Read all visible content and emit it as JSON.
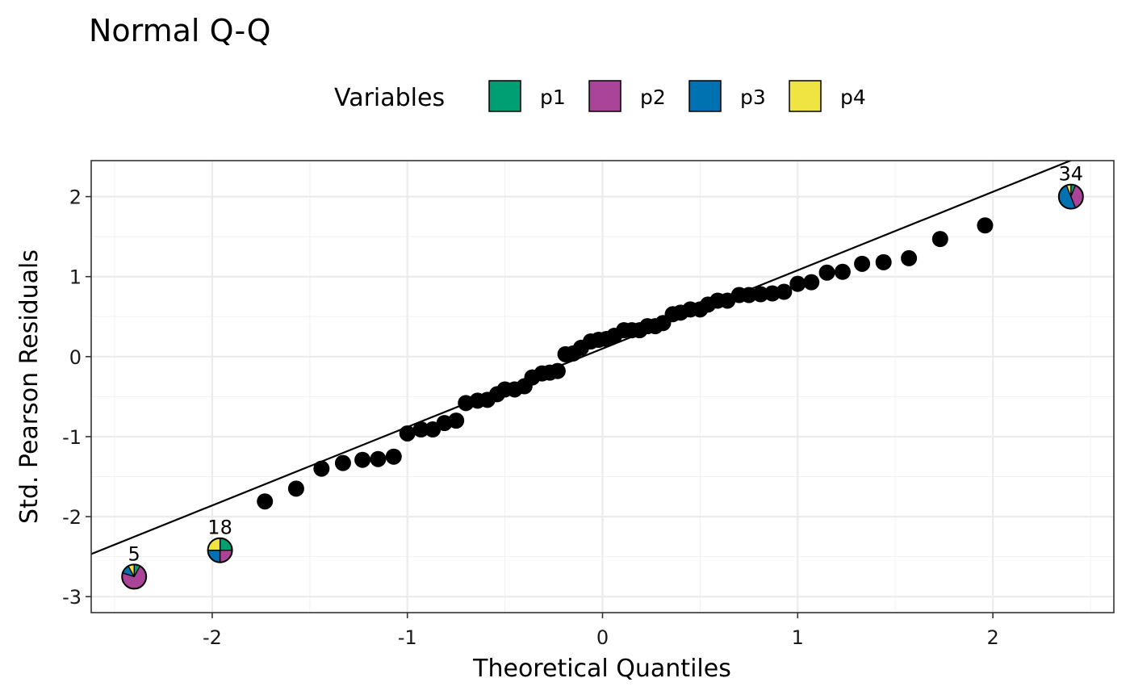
{
  "chart_data": {
    "type": "scatter",
    "title": "Normal Q-Q",
    "xlabel": "Theoretical Quantiles",
    "ylabel": "Std. Pearson Residuals",
    "xlim": [
      -2.62,
      2.62
    ],
    "ylim": [
      -3.2,
      2.45
    ],
    "x_ticks": [
      -2,
      -1,
      0,
      1,
      2
    ],
    "x_tick_labels": [
      "-2",
      "-1",
      "0",
      "1",
      "2"
    ],
    "y_ticks": [
      -3,
      -2,
      -1,
      0,
      1,
      2
    ],
    "y_tick_labels": [
      "-3",
      "-2",
      "-1",
      "0",
      "1",
      "2"
    ],
    "grid": true,
    "legend": {
      "title": "Variables",
      "position": "top",
      "entries": [
        {
          "label": "p1",
          "color": "#009E73"
        },
        {
          "label": "p2",
          "color": "#AA4499"
        },
        {
          "label": "p3",
          "color": "#0072B2"
        },
        {
          "label": "p4",
          "color": "#F0E442"
        }
      ]
    },
    "reference_line": {
      "intercept": 0.1,
      "slope": 0.98
    },
    "points": [
      {
        "x": -1.73,
        "y": -1.81
      },
      {
        "x": -1.57,
        "y": -1.65
      },
      {
        "x": -1.44,
        "y": -1.4
      },
      {
        "x": -1.33,
        "y": -1.33
      },
      {
        "x": -1.23,
        "y": -1.29
      },
      {
        "x": -1.15,
        "y": -1.28
      },
      {
        "x": -1.07,
        "y": -1.25
      },
      {
        "x": -1.0,
        "y": -0.96
      },
      {
        "x": -0.93,
        "y": -0.91
      },
      {
        "x": -0.87,
        "y": -0.91
      },
      {
        "x": -0.81,
        "y": -0.83
      },
      {
        "x": -0.75,
        "y": -0.8
      },
      {
        "x": -0.7,
        "y": -0.58
      },
      {
        "x": -0.64,
        "y": -0.55
      },
      {
        "x": -0.59,
        "y": -0.54
      },
      {
        "x": -0.54,
        "y": -0.47
      },
      {
        "x": -0.5,
        "y": -0.41
      },
      {
        "x": -0.45,
        "y": -0.41
      },
      {
        "x": -0.4,
        "y": -0.37
      },
      {
        "x": -0.36,
        "y": -0.26
      },
      {
        "x": -0.31,
        "y": -0.21
      },
      {
        "x": -0.27,
        "y": -0.2
      },
      {
        "x": -0.23,
        "y": -0.18
      },
      {
        "x": -0.19,
        "y": 0.03
      },
      {
        "x": -0.15,
        "y": 0.04
      },
      {
        "x": -0.11,
        "y": 0.11
      },
      {
        "x": -0.06,
        "y": 0.19
      },
      {
        "x": -0.02,
        "y": 0.21
      },
      {
        "x": 0.02,
        "y": 0.22
      },
      {
        "x": 0.06,
        "y": 0.26
      },
      {
        "x": 0.11,
        "y": 0.33
      },
      {
        "x": 0.15,
        "y": 0.33
      },
      {
        "x": 0.19,
        "y": 0.33
      },
      {
        "x": 0.23,
        "y": 0.38
      },
      {
        "x": 0.27,
        "y": 0.38
      },
      {
        "x": 0.31,
        "y": 0.42
      },
      {
        "x": 0.36,
        "y": 0.53
      },
      {
        "x": 0.4,
        "y": 0.55
      },
      {
        "x": 0.45,
        "y": 0.59
      },
      {
        "x": 0.5,
        "y": 0.59
      },
      {
        "x": 0.54,
        "y": 0.65
      },
      {
        "x": 0.59,
        "y": 0.7
      },
      {
        "x": 0.64,
        "y": 0.7
      },
      {
        "x": 0.7,
        "y": 0.77
      },
      {
        "x": 0.75,
        "y": 0.77
      },
      {
        "x": 0.81,
        "y": 0.78
      },
      {
        "x": 0.87,
        "y": 0.79
      },
      {
        "x": 0.93,
        "y": 0.81
      },
      {
        "x": 1.0,
        "y": 0.91
      },
      {
        "x": 1.07,
        "y": 0.93
      },
      {
        "x": 1.15,
        "y": 1.05
      },
      {
        "x": 1.23,
        "y": 1.06
      },
      {
        "x": 1.33,
        "y": 1.16
      },
      {
        "x": 1.44,
        "y": 1.18
      },
      {
        "x": 1.57,
        "y": 1.23
      },
      {
        "x": 1.73,
        "y": 1.47
      },
      {
        "x": 1.96,
        "y": 1.64
      }
    ],
    "labeled_points": [
      {
        "label": "5",
        "x": -2.4,
        "y": -2.75,
        "shares": [
          0.08,
          0.72,
          0.12,
          0.08
        ]
      },
      {
        "label": "18",
        "x": -1.96,
        "y": -2.42,
        "shares": [
          0.25,
          0.25,
          0.25,
          0.25
        ]
      },
      {
        "label": "34",
        "x": 2.4,
        "y": 2.0,
        "shares": [
          0.06,
          0.38,
          0.5,
          0.06
        ]
      }
    ]
  }
}
